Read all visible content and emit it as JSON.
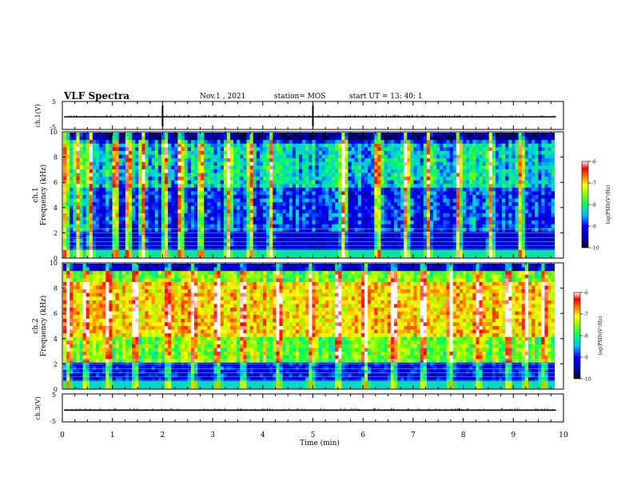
{
  "header": {
    "title": "VLF Spectra",
    "date": "Nov.1 , 2021",
    "station": "station= MOS",
    "start": "start UT = 13: 40: 1"
  },
  "chart_data": [
    {
      "type": "line",
      "panel": "ch1-waveform",
      "ylabel": "ch.1(V)",
      "ylim": [
        -5,
        5
      ],
      "y_ticks": [
        "5",
        "-5"
      ],
      "xlim": [
        0,
        10
      ],
      "trace_level": -0.5,
      "marker_times": [
        2.0,
        5.0
      ]
    },
    {
      "type": "heatmap",
      "panel": "ch1-spectrogram",
      "ylabel": "ch.1 Frequency (kHz)",
      "xlim": [
        0,
        10
      ],
      "ylim": [
        0,
        10
      ],
      "x_data_end": 9.82,
      "y_ticks": [
        "0",
        "2",
        "4",
        "6",
        "8",
        "10"
      ],
      "colorbar": {
        "label": "log(PSD)(V²/Hz)",
        "range": [
          -10,
          -6
        ],
        "ticks": [
          "-6",
          "-7",
          "-8",
          "-9",
          "-10"
        ]
      },
      "background_level": -8.9,
      "band_levels": [
        -10,
        -8.2,
        -8.4
      ],
      "bright_bursts_min": [
        0.05,
        0.3,
        0.55,
        1.05,
        1.3,
        1.6,
        2.05,
        2.35,
        2.75,
        3.3,
        3.75,
        4.15,
        5.6,
        6.3,
        6.85,
        7.3,
        7.9,
        8.55,
        9.15
      ]
    },
    {
      "type": "heatmap",
      "panel": "ch2-spectrogram",
      "ylabel": "ch.2 Frequency (kHz)",
      "xlim": [
        0,
        10
      ],
      "ylim": [
        0,
        10
      ],
      "x_data_end": 9.82,
      "y_ticks": [
        "0",
        "2",
        "4",
        "6",
        "8",
        "10"
      ],
      "colorbar": {
        "label": "log(PSD)(V²/Hz)",
        "range": [
          -10,
          -6
        ],
        "ticks": [
          "-6",
          "-7",
          "-8",
          "-9",
          "-10"
        ]
      },
      "background_level": -7.6,
      "emission_band_khz": [
        4,
        8.5
      ],
      "emission_level": -7.0,
      "bright_bursts_min": [
        0.1,
        0.45,
        0.9,
        1.45,
        2.1,
        2.6,
        3.1,
        3.6,
        4.3,
        4.95,
        5.5,
        6.05,
        6.6,
        7.2,
        7.75,
        8.3,
        8.9,
        9.25,
        9.6
      ]
    },
    {
      "type": "line",
      "panel": "ch3-waveform",
      "ylabel": "ch.3(V)",
      "xlabel": "Time (min)",
      "ylim": [
        -5,
        5
      ],
      "y_ticks": [
        "5",
        "-5"
      ],
      "xlim": [
        0,
        10
      ],
      "x_ticks": [
        "0",
        "1",
        "2",
        "3",
        "4",
        "5",
        "6",
        "7",
        "8",
        "9",
        "10"
      ],
      "trace_level": -0.8
    }
  ]
}
